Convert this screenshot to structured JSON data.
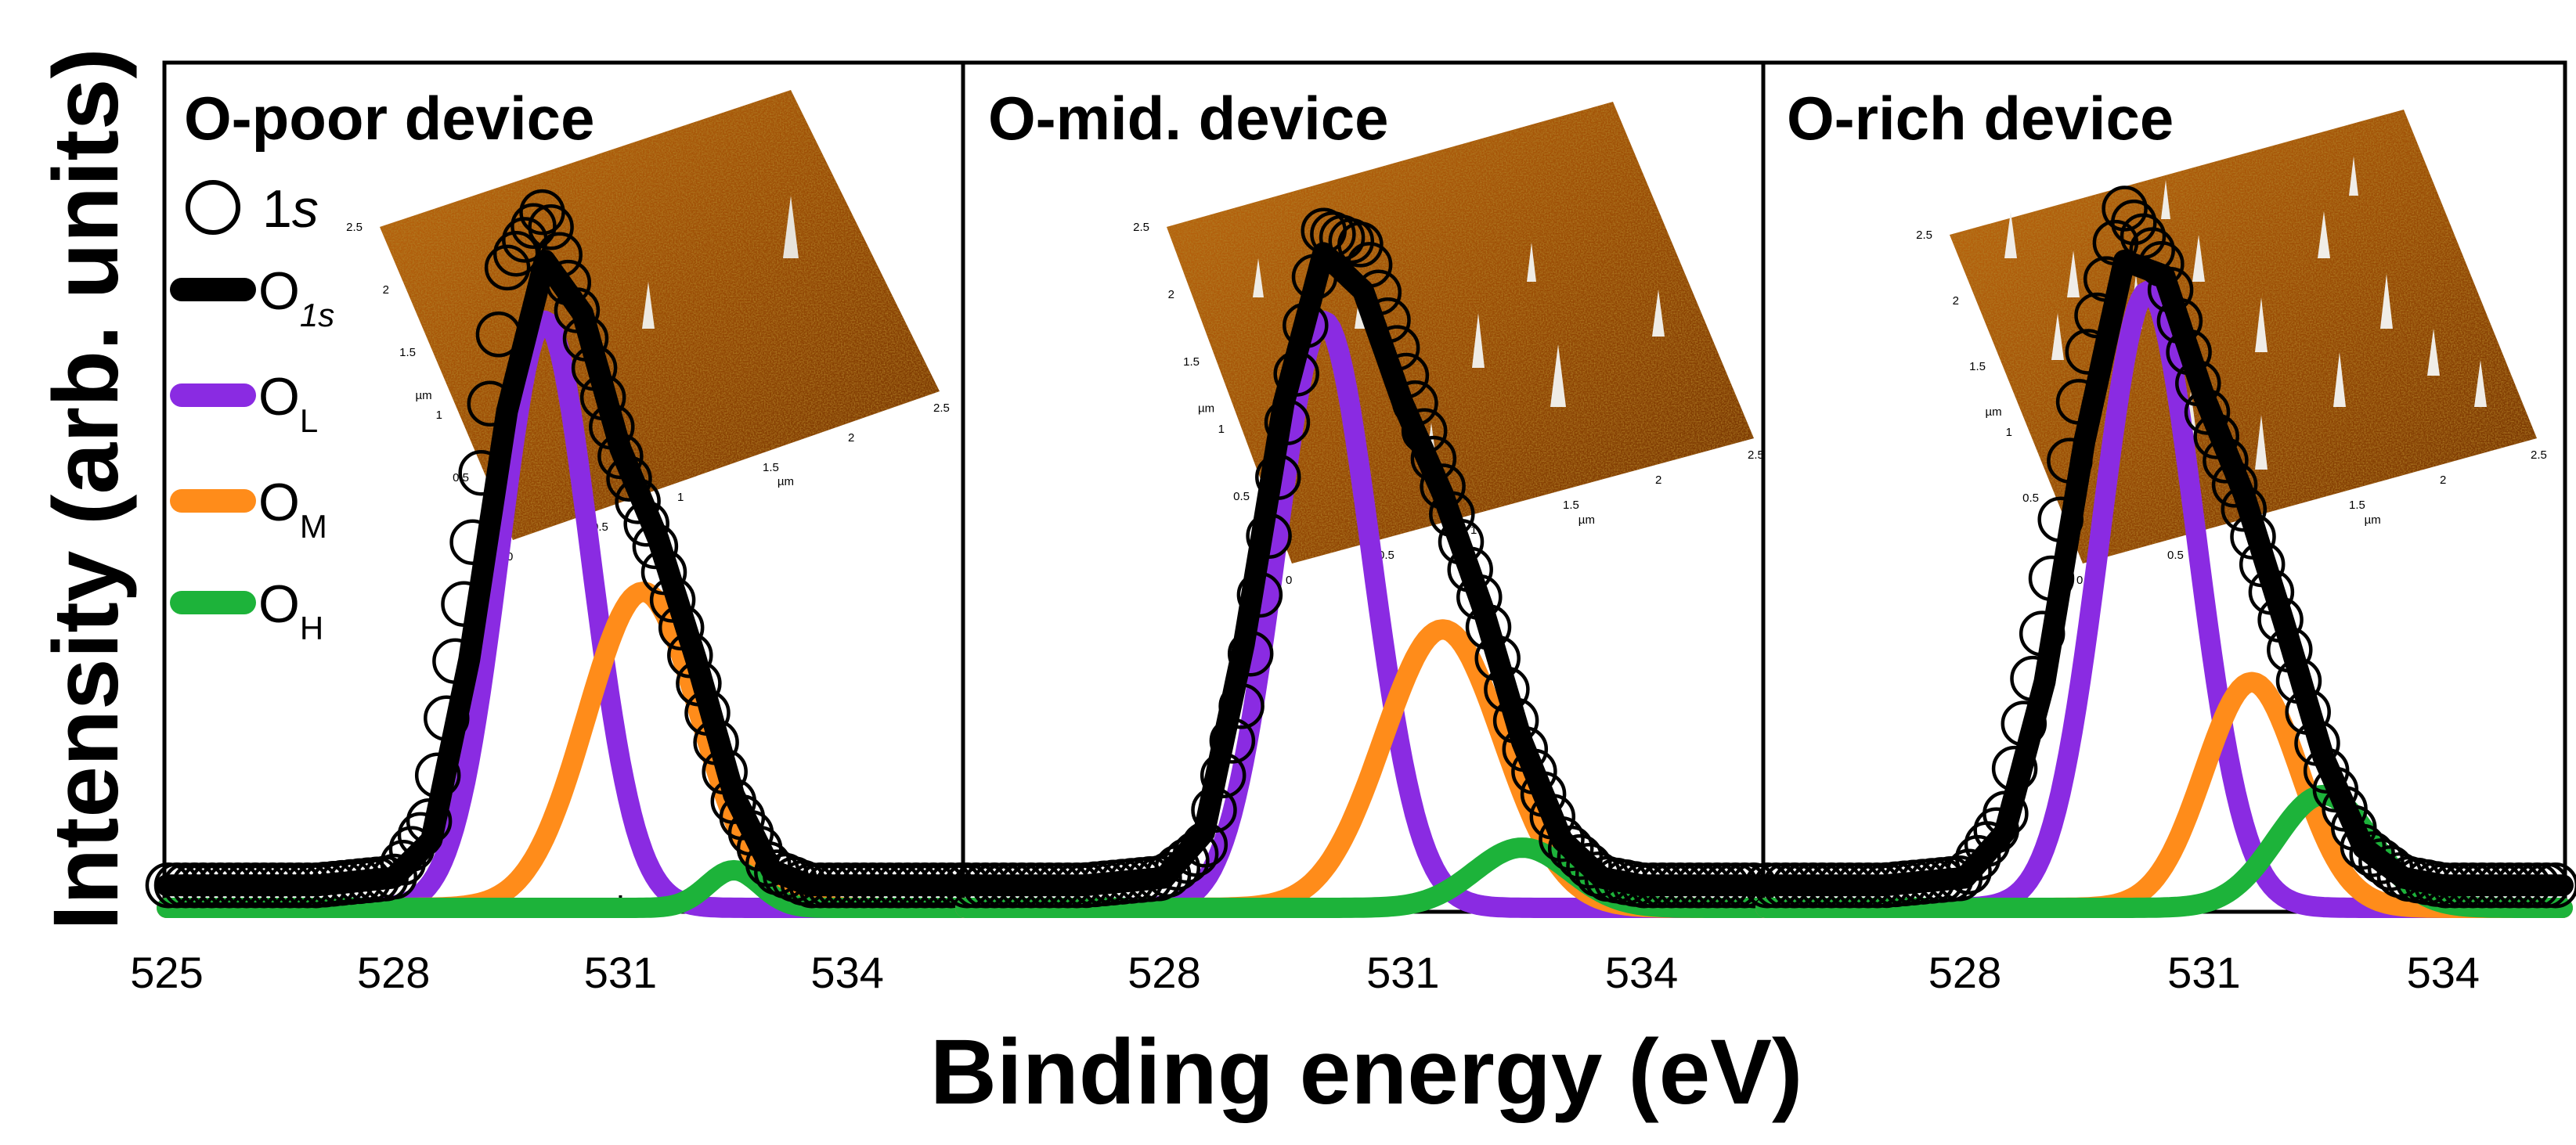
{
  "figure": {
    "ylabel": "Intensity (arb. units)",
    "xlabel": "Binding energy (eV)"
  },
  "legend": {
    "items": [
      {
        "label": "1",
        "label_italic": "s",
        "kind": "marker"
      },
      {
        "label": "O",
        "sub": "1s",
        "kind": "line",
        "color": "#000000"
      },
      {
        "label": "O",
        "sub": "L",
        "kind": "line",
        "color": "#8a2be2"
      },
      {
        "label": "O",
        "sub": "M",
        "kind": "line",
        "color": "#ff8c1a"
      },
      {
        "label": "O",
        "sub": "H",
        "kind": "line",
        "color": "#1db33a"
      }
    ]
  },
  "afm_ticks": {
    "x": [
      "0",
      "0.5",
      "1",
      "1.5",
      "2",
      "2.5"
    ],
    "y": [
      "0",
      "0.5",
      "1",
      "1.5",
      "2",
      "2.5"
    ],
    "unit": "µm"
  },
  "chart_data": [
    {
      "type": "line",
      "title": "O-poor device",
      "xlim": [
        525,
        535.5
      ],
      "ylim": [
        0,
        1.12
      ],
      "xticks": [
        "525",
        "528",
        "531",
        "534"
      ],
      "xlabel": "Binding energy (eV)",
      "ylabel": "Intensity (arb. units)",
      "components": [
        {
          "name": "OL",
          "color": "#8a2be2",
          "center": 530.0,
          "amp": 0.78,
          "sigma": 0.6
        },
        {
          "name": "OM",
          "color": "#ff8c1a",
          "center": 531.3,
          "amp": 0.42,
          "sigma": 0.75
        },
        {
          "name": "OH",
          "color": "#1db33a",
          "center": 532.5,
          "amp": 0.05,
          "sigma": 0.35
        }
      ],
      "peak_eV": 530.0,
      "series": [
        {
          "name": "O1s",
          "color": "#000000",
          "x": [
            525,
            526,
            527,
            528,
            528.5,
            529,
            529.5,
            530,
            530.5,
            531,
            531.5,
            532,
            532.5,
            533,
            533.5,
            534,
            535.5
          ],
          "values": [
            0.03,
            0.03,
            0.03,
            0.04,
            0.09,
            0.33,
            0.66,
            0.86,
            0.79,
            0.61,
            0.49,
            0.33,
            0.15,
            0.05,
            0.03,
            0.03,
            0.03
          ]
        },
        {
          "name": "1s",
          "marker": "circle",
          "x": [
            525,
            526,
            527,
            528,
            528.5,
            529,
            529.5,
            530,
            530.5,
            531,
            531.5,
            532,
            532.5,
            533,
            533.5,
            534,
            535.5
          ],
          "values": [
            0.03,
            0.03,
            0.03,
            0.04,
            0.12,
            0.45,
            0.85,
            0.93,
            0.77,
            0.6,
            0.47,
            0.31,
            0.14,
            0.05,
            0.03,
            0.03,
            0.03
          ]
        }
      ]
    },
    {
      "type": "line",
      "title": "O-mid. device",
      "xlim": [
        525.5,
        535.5
      ],
      "ylim": [
        0,
        1.12
      ],
      "xticks": [
        "528",
        "531",
        "534"
      ],
      "xlabel": "Binding energy (eV)",
      "ylabel": "Intensity (arb. units)",
      "components": [
        {
          "name": "OL",
          "color": "#8a2be2",
          "center": 530.0,
          "amp": 0.78,
          "sigma": 0.6
        },
        {
          "name": "OM",
          "color": "#ff8c1a",
          "center": 531.5,
          "amp": 0.37,
          "sigma": 0.75
        },
        {
          "name": "OH",
          "color": "#1db33a",
          "center": 532.5,
          "amp": 0.08,
          "sigma": 0.6
        }
      ],
      "peak_eV": 530.3,
      "series": [
        {
          "name": "O1s",
          "color": "#000000",
          "x": [
            525.5,
            526,
            527,
            528,
            528.5,
            529,
            529.5,
            530,
            530.5,
            531,
            531.5,
            532,
            532.5,
            533,
            533.5,
            534,
            535.5
          ],
          "values": [
            0.03,
            0.03,
            0.03,
            0.04,
            0.1,
            0.35,
            0.67,
            0.87,
            0.82,
            0.67,
            0.55,
            0.4,
            0.22,
            0.09,
            0.04,
            0.03,
            0.03
          ]
        },
        {
          "name": "1s",
          "marker": "circle",
          "x": [
            525.5,
            526,
            527,
            528,
            528.5,
            529,
            529.5,
            530,
            530.5,
            531,
            531.5,
            532,
            532.5,
            533,
            533.5,
            534,
            535.5
          ],
          "values": [
            0.03,
            0.03,
            0.03,
            0.04,
            0.08,
            0.28,
            0.62,
            0.9,
            0.88,
            0.72,
            0.56,
            0.4,
            0.22,
            0.09,
            0.04,
            0.03,
            0.03
          ]
        }
      ]
    },
    {
      "type": "line",
      "title": "O-rich device",
      "xlim": [
        525.5,
        535.5
      ],
      "ylim": [
        0,
        1.12
      ],
      "xticks": [
        "528",
        "531",
        "534"
      ],
      "xlabel": "Binding energy (eV)",
      "ylabel": "Intensity (arb. units)",
      "components": [
        {
          "name": "OL",
          "color": "#8a2be2",
          "center": 530.3,
          "amp": 0.82,
          "sigma": 0.6
        },
        {
          "name": "OM",
          "color": "#ff8c1a",
          "center": 531.6,
          "amp": 0.3,
          "sigma": 0.6
        },
        {
          "name": "OH",
          "color": "#1db33a",
          "center": 532.5,
          "amp": 0.15,
          "sigma": 0.6
        }
      ],
      "peak_eV": 530.3,
      "series": [
        {
          "name": "O1s",
          "color": "#000000",
          "x": [
            525.5,
            526,
            527,
            528,
            528.5,
            529,
            529.5,
            530,
            530.5,
            531,
            531.5,
            532,
            532.5,
            533,
            533.5,
            534,
            535.5
          ],
          "values": [
            0.03,
            0.03,
            0.03,
            0.04,
            0.1,
            0.3,
            0.62,
            0.86,
            0.84,
            0.68,
            0.55,
            0.38,
            0.2,
            0.08,
            0.04,
            0.03,
            0.03
          ]
        },
        {
          "name": "1s",
          "marker": "circle",
          "x": [
            525.5,
            526,
            527,
            528,
            528.5,
            529,
            529.5,
            530,
            530.5,
            531,
            531.5,
            532,
            532.5,
            533,
            533.5,
            534,
            535.5
          ],
          "values": [
            0.03,
            0.03,
            0.03,
            0.04,
            0.12,
            0.38,
            0.72,
            0.93,
            0.85,
            0.67,
            0.53,
            0.37,
            0.19,
            0.08,
            0.04,
            0.03,
            0.03
          ]
        }
      ]
    }
  ]
}
